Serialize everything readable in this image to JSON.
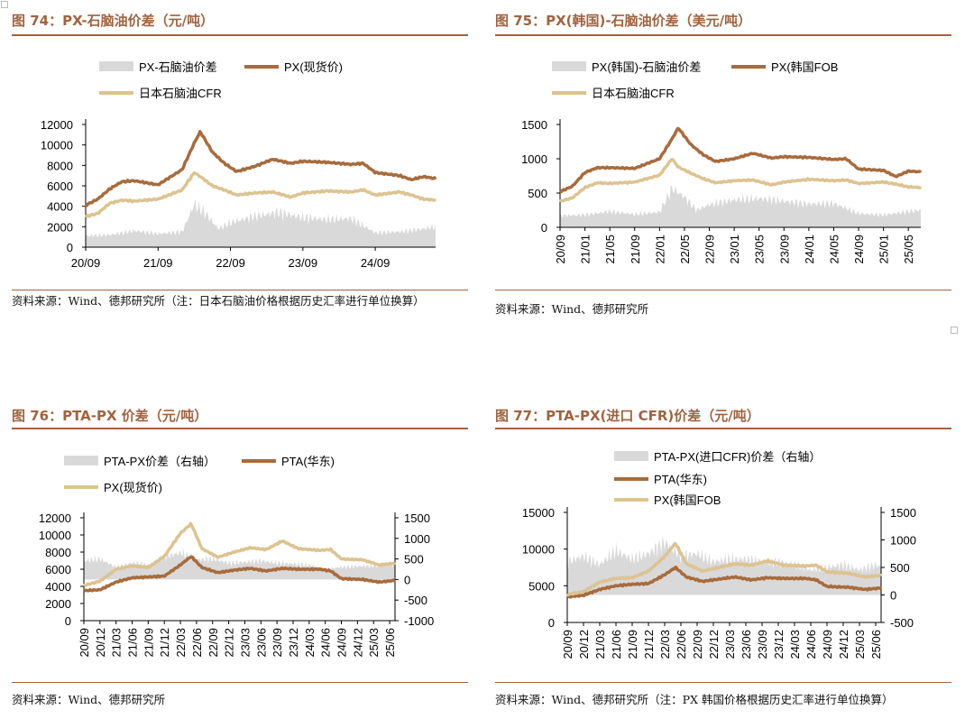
{
  "colors": {
    "accent": "#a0633f",
    "spread": "#d9d9d9",
    "line_dark": "#a86b3c",
    "line_light": "#dcc390"
  },
  "panels": [
    {
      "title": "图 74：PX-石脑油价差（元/吨）",
      "source": "资料来源：Wind、德邦研究所（注：日本石脑油价格根据历史汇率进行单位换算）",
      "chart_data": {
        "type": "area",
        "legend_placement": "top",
        "x_ticks": [
          "20/09",
          "21/09",
          "22/09",
          "23/09",
          "24/09"
        ],
        "y_left_ticks": [
          0,
          2000,
          4000,
          6000,
          8000,
          10000,
          12000
        ],
        "ylim_left": [
          0,
          12000
        ],
        "series": [
          {
            "name": "PX-石脑油价差",
            "kind": "area",
            "axis": "left",
            "x": [
              "2020-09",
              "2021-01",
              "2021-05",
              "2021-09",
              "2022-01",
              "2022-03",
              "2022-05",
              "2022-07",
              "2022-09",
              "2023-01",
              "2023-05",
              "2023-09",
              "2024-01",
              "2024-05",
              "2024-09",
              "2025-01",
              "2025-05",
              "2025-07"
            ],
            "values": [
              1100,
              1200,
              1600,
              1300,
              1500,
              4200,
              3200,
              1800,
              2400,
              3000,
              3400,
              2900,
              2700,
              2800,
              1400,
              1500,
              1800,
              2000
            ]
          },
          {
            "name": "PX(现货价)",
            "kind": "line",
            "axis": "left",
            "x": [
              "2020-09",
              "2020-11",
              "2021-01",
              "2021-03",
              "2021-05",
              "2021-09",
              "2022-01",
              "2022-03",
              "2022-04",
              "2022-06",
              "2022-08",
              "2022-10",
              "2023-01",
              "2023-04",
              "2023-07",
              "2023-09",
              "2024-01",
              "2024-05",
              "2024-07",
              "2024-09",
              "2025-01",
              "2025-03",
              "2025-05",
              "2025-07"
            ],
            "values": [
              4100,
              4700,
              5700,
              6400,
              6500,
              6100,
              7600,
              10200,
              11300,
              9300,
              8200,
              7400,
              7900,
              8600,
              8200,
              8400,
              8300,
              8100,
              8200,
              7300,
              7000,
              6600,
              6900,
              6700
            ]
          },
          {
            "name": "日本石脑油CFR",
            "kind": "line",
            "axis": "left",
            "x": [
              "2020-09",
              "2020-11",
              "2021-01",
              "2021-03",
              "2021-05",
              "2021-09",
              "2022-01",
              "2022-03",
              "2022-04",
              "2022-06",
              "2022-08",
              "2022-10",
              "2023-01",
              "2023-04",
              "2023-07",
              "2023-09",
              "2024-01",
              "2024-05",
              "2024-07",
              "2024-09",
              "2025-01",
              "2025-03",
              "2025-05",
              "2025-07"
            ],
            "values": [
              3000,
              3300,
              4300,
              4600,
              4500,
              4700,
              5600,
              7300,
              6900,
              6000,
              5600,
              5100,
              5300,
              5400,
              4900,
              5300,
              5500,
              5400,
              5600,
              5100,
              5400,
              5100,
              4700,
              4600
            ]
          }
        ]
      }
    },
    {
      "title": "图 75：PX(韩国)-石脑油价差（美元/吨）",
      "source": "资料来源：Wind、德邦研究所",
      "chart_data": {
        "type": "area",
        "legend_placement": "top",
        "x_ticks": [
          "20/09",
          "21/01",
          "21/05",
          "21/09",
          "22/01",
          "22/05",
          "22/09",
          "23/01",
          "23/05",
          "23/09",
          "24/01",
          "24/05",
          "24/09",
          "25/01",
          "25/05"
        ],
        "y_left_ticks": [
          0,
          500,
          1000,
          1500
        ],
        "ylim_left": [
          0,
          1500
        ],
        "series": [
          {
            "name": "PX(韩国)-石脑油价差",
            "kind": "area",
            "axis": "left",
            "x": [
              "2020-09",
              "2021-01",
              "2021-05",
              "2021-09",
              "2022-01",
              "2022-03",
              "2022-05",
              "2022-07",
              "2022-09",
              "2023-01",
              "2023-05",
              "2023-09",
              "2024-01",
              "2024-05",
              "2024-09",
              "2025-01",
              "2025-05",
              "2025-07"
            ],
            "values": [
              170,
              180,
              230,
              190,
              220,
              570,
              440,
              250,
              330,
              400,
              420,
              380,
              340,
              350,
              200,
              180,
              230,
              250
            ]
          },
          {
            "name": "PX(韩国FOB",
            "kind": "line",
            "axis": "left",
            "x": [
              "2020-09",
              "2020-11",
              "2021-01",
              "2021-03",
              "2021-05",
              "2021-09",
              "2022-01",
              "2022-03",
              "2022-04",
              "2022-06",
              "2022-08",
              "2022-10",
              "2023-01",
              "2023-04",
              "2023-07",
              "2023-09",
              "2024-01",
              "2024-05",
              "2024-07",
              "2024-09",
              "2025-01",
              "2025-03",
              "2025-05",
              "2025-07"
            ],
            "values": [
              520,
              600,
              800,
              870,
              870,
              860,
              1000,
              1290,
              1450,
              1210,
              1060,
              960,
              1000,
              1080,
              1010,
              1030,
              1020,
              990,
              1000,
              850,
              830,
              740,
              820,
              810
            ]
          },
          {
            "name": "日本石脑油CFR",
            "kind": "line",
            "axis": "left",
            "x": [
              "2020-09",
              "2020-11",
              "2021-01",
              "2021-03",
              "2021-05",
              "2021-09",
              "2022-01",
              "2022-03",
              "2022-04",
              "2022-06",
              "2022-08",
              "2022-10",
              "2023-01",
              "2023-04",
              "2023-07",
              "2023-09",
              "2024-01",
              "2024-05",
              "2024-07",
              "2024-09",
              "2025-01",
              "2025-03",
              "2025-05",
              "2025-07"
            ],
            "values": [
              380,
              430,
              580,
              650,
              640,
              660,
              760,
              1000,
              880,
              790,
              710,
              650,
              680,
              690,
              620,
              660,
              700,
              680,
              690,
              640,
              660,
              630,
              590,
              580
            ]
          }
        ]
      }
    },
    {
      "title": "图 76：PTA-PX 价差（元/吨）",
      "source": "资料来源：Wind、德邦研究所",
      "chart_data": {
        "type": "area",
        "legend_placement": "top",
        "x_ticks": [
          "20/09",
          "20/12",
          "21/03",
          "21/06",
          "21/09",
          "21/12",
          "22/03",
          "22/06",
          "22/09",
          "22/12",
          "23/03",
          "23/06",
          "23/09",
          "23/12",
          "24/03",
          "24/06",
          "24/09",
          "24/12",
          "25/03",
          "25/06"
        ],
        "y_left_ticks": [
          0,
          2000,
          4000,
          6000,
          8000,
          10000,
          12000
        ],
        "ylim_left": [
          0,
          12000
        ],
        "y_right_ticks": [
          -1000,
          -500,
          0,
          500,
          1000,
          1500
        ],
        "ylim_right": [
          -1000,
          1500
        ],
        "series": [
          {
            "name": "PTA-PX价差（右轴）",
            "kind": "area",
            "axis": "right",
            "x": [
              "2020-09",
              "2020-12",
              "2021-03",
              "2021-06",
              "2021-09",
              "2021-12",
              "2022-03",
              "2022-06",
              "2022-09",
              "2022-12",
              "2023-03",
              "2023-06",
              "2023-09",
              "2023-12",
              "2024-03",
              "2024-06",
              "2024-09",
              "2024-12",
              "2025-03",
              "2025-06",
              "2025-07"
            ],
            "values": [
              450,
              500,
              300,
              400,
              350,
              550,
              650,
              480,
              500,
              400,
              420,
              450,
              400,
              380,
              350,
              250,
              300,
              320,
              330,
              380,
              350
            ]
          },
          {
            "name": "PTA(华东)",
            "kind": "line",
            "axis": "left",
            "x": [
              "2020-09",
              "2020-12",
              "2021-03",
              "2021-06",
              "2021-09",
              "2021-12",
              "2022-03",
              "2022-05",
              "2022-07",
              "2022-10",
              "2023-01",
              "2023-04",
              "2023-07",
              "2023-10",
              "2024-01",
              "2024-05",
              "2024-07",
              "2024-09",
              "2025-01",
              "2025-04",
              "2025-07"
            ],
            "values": [
              3500,
              3600,
              4500,
              5000,
              5100,
              5200,
              6500,
              7500,
              6200,
              5600,
              5900,
              6100,
              5800,
              6100,
              6000,
              6000,
              5800,
              4900,
              4800,
              4500,
              4700
            ]
          },
          {
            "name": "PX(现货价)",
            "kind": "line",
            "axis": "left",
            "x": [
              "2020-09",
              "2020-12",
              "2021-03",
              "2021-06",
              "2021-09",
              "2021-12",
              "2022-03",
              "2022-05",
              "2022-07",
              "2022-10",
              "2023-01",
              "2023-04",
              "2023-07",
              "2023-10",
              "2024-01",
              "2024-05",
              "2024-07",
              "2024-09",
              "2025-01",
              "2025-04",
              "2025-07"
            ],
            "values": [
              4100,
              4600,
              6000,
              6400,
              6200,
              7500,
              10200,
              11300,
              8400,
              7400,
              8000,
              8500,
              8300,
              9300,
              8400,
              8200,
              8300,
              7200,
              7100,
              6500,
              6700
            ]
          }
        ]
      }
    },
    {
      "title": "图 77：PTA-PX(进口 CFR)价差（元/吨）",
      "source": "资料来源：Wind、德邦研究所（注：PX 韩国价格根据历史汇率进行单位换算）",
      "chart_data": {
        "type": "area",
        "legend_placement": "top-left",
        "x_ticks": [
          "20/09",
          "20/12",
          "21/03",
          "21/06",
          "21/09",
          "21/12",
          "22/03",
          "22/06",
          "22/09",
          "22/12",
          "23/03",
          "23/06",
          "23/09",
          "23/12",
          "24/03",
          "24/06",
          "24/09",
          "24/12",
          "25/03",
          "25/06"
        ],
        "y_left_ticks": [
          0,
          5000,
          10000,
          15000
        ],
        "ylim_left": [
          0,
          15000
        ],
        "y_right_ticks": [
          -500,
          0,
          500,
          1000,
          1500
        ],
        "ylim_right": [
          -500,
          1500
        ],
        "series": [
          {
            "name": "PTA-PX(进口CFR)价差（右轴）",
            "kind": "area",
            "axis": "right",
            "x": [
              "2020-09",
              "2020-12",
              "2021-03",
              "2021-06",
              "2021-09",
              "2021-12",
              "2022-03",
              "2022-06",
              "2022-09",
              "2022-12",
              "2023-03",
              "2023-06",
              "2023-09",
              "2023-12",
              "2024-03",
              "2024-06",
              "2024-09",
              "2024-12",
              "2025-03",
              "2025-06",
              "2025-07"
            ],
            "values": [
              600,
              700,
              550,
              800,
              650,
              750,
              950,
              700,
              750,
              600,
              650,
              650,
              600,
              600,
              550,
              450,
              500,
              550,
              450,
              550,
              500
            ]
          },
          {
            "name": "PTA(华东)",
            "kind": "line",
            "axis": "left",
            "x": [
              "2020-09",
              "2020-12",
              "2021-03",
              "2021-06",
              "2021-09",
              "2021-12",
              "2022-03",
              "2022-05",
              "2022-07",
              "2022-10",
              "2023-01",
              "2023-04",
              "2023-07",
              "2023-10",
              "2024-01",
              "2024-05",
              "2024-07",
              "2024-09",
              "2025-01",
              "2025-04",
              "2025-07"
            ],
            "values": [
              3500,
              3700,
              4500,
              5000,
              5200,
              5300,
              6500,
              7500,
              6200,
              5600,
              5900,
              6200,
              5800,
              6100,
              6000,
              6000,
              5800,
              4900,
              4800,
              4500,
              4700
            ]
          },
          {
            "name": "PX(韩国FOB",
            "kind": "line",
            "axis": "left",
            "x": [
              "2020-09",
              "2020-12",
              "2021-03",
              "2021-06",
              "2021-09",
              "2021-12",
              "2022-03",
              "2022-05",
              "2022-07",
              "2022-10",
              "2023-01",
              "2023-04",
              "2023-07",
              "2023-10",
              "2024-01",
              "2024-05",
              "2024-07",
              "2024-09",
              "2025-01",
              "2025-04",
              "2025-07"
            ],
            "values": [
              3800,
              4200,
              5500,
              6000,
              6100,
              7000,
              9000,
              10800,
              8000,
              7000,
              7500,
              8000,
              7800,
              8400,
              7800,
              7700,
              7800,
              6900,
              6700,
              6200,
              6400
            ]
          }
        ]
      }
    }
  ]
}
